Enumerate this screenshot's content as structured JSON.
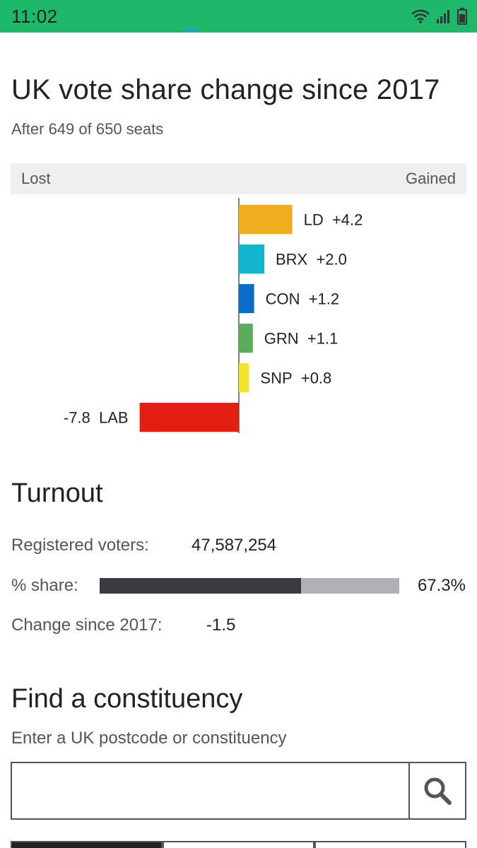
{
  "status_bar": {
    "time": "11:02",
    "color": "#1db86a",
    "icons": [
      "wifi-icon",
      "signal-icon",
      "battery-icon"
    ]
  },
  "vote_share": {
    "title": "UK vote share change since 2017",
    "subtitle": "After 649 of 650 seats",
    "lost_label": "Lost",
    "gained_label": "Gained"
  },
  "chart_data": {
    "type": "bar",
    "orientation": "horizontal",
    "categories": [
      "LD",
      "BRX",
      "CON",
      "GRN",
      "SNP",
      "LAB"
    ],
    "values": [
      4.2,
      2.0,
      1.2,
      1.1,
      0.8,
      -7.8
    ],
    "value_labels": [
      "+4.2",
      "+2.0",
      "+1.2",
      "+1.1",
      "+0.8",
      "-7.8"
    ],
    "colors": [
      "#f0ad1e",
      "#12b6cf",
      "#0a6bc9",
      "#5aad5a",
      "#f4e32b",
      "#e41e13"
    ],
    "title": "UK vote share change since 2017",
    "xlabel": "",
    "ylabel": ""
  },
  "turnout": {
    "title": "Turnout",
    "registered_label": "Registered voters:",
    "registered_value": "47,587,254",
    "share_label": "% share:",
    "share_value": "67.3%",
    "share_fraction": 0.673,
    "change_label": "Change since 2017:",
    "change_value": "-1.5"
  },
  "find": {
    "title": "Find a constituency",
    "subtitle": "Enter a UK postcode or constituency",
    "input_value": "",
    "button_icon": "search-icon"
  }
}
